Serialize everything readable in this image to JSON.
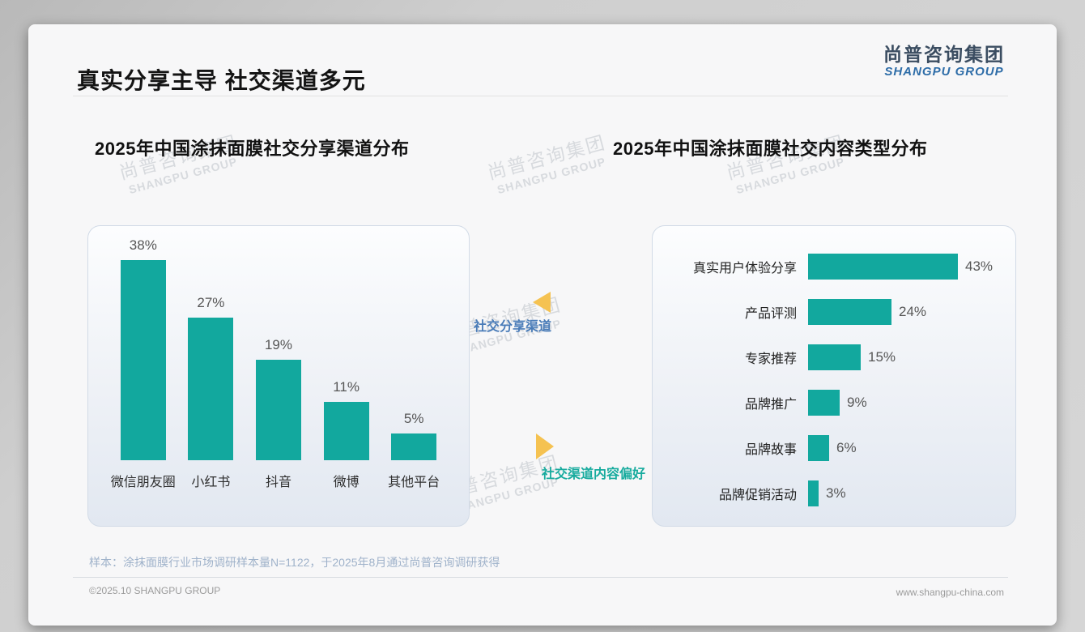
{
  "page": {
    "title": "真实分享主导 社交渠道多元",
    "logo": {
      "cn": "尚普咨询集团",
      "en": "SHANGPU GROUP"
    },
    "watermark": {
      "cn": "尚普咨询集团",
      "en": "SHANGPU GROUP"
    },
    "sample_note": "样本：涂抹面膜行业市场调研样本量N=1122，于2025年8月通过尚普咨询调研获得",
    "footer": {
      "left": "©2025.10 SHANGPU GROUP",
      "right": "www.shangpu-china.com"
    }
  },
  "annotations": [
    {
      "label": "社交分享渠道",
      "direction": "left",
      "color": "#4a7cb8"
    },
    {
      "label": "社交渠道内容偏好",
      "direction": "right",
      "color": "#17ab9e"
    }
  ],
  "colors": {
    "bar_teal": "#12a89e",
    "triangle_yellow": "#f5c251",
    "annotation_blue": "#4a7cb8",
    "annotation_teal": "#17ab9e",
    "logo_cn": "#3b4d61",
    "logo_en": "#2e6da8"
  },
  "chart_data": [
    {
      "type": "bar",
      "orientation": "vertical",
      "title": "2025年中国涂抹面膜社交分享渠道分布",
      "categories": [
        "微信朋友圈",
        "小红书",
        "抖音",
        "微博",
        "其他平台"
      ],
      "values": [
        38,
        27,
        19,
        11,
        5
      ],
      "unit": "%",
      "ylim": [
        0,
        40
      ],
      "grid": false,
      "data_labels": "above bars",
      "bar_color": "#12a89e"
    },
    {
      "type": "bar",
      "orientation": "horizontal",
      "title": "2025年中国涂抹面膜社交内容类型分布",
      "categories": [
        "真实用户体验分享",
        "产品评测",
        "专家推荐",
        "品牌推广",
        "品牌故事",
        "品牌促销活动"
      ],
      "values": [
        43,
        24,
        15,
        9,
        6,
        3
      ],
      "unit": "%",
      "xlim": [
        0,
        45
      ],
      "grid": false,
      "data_labels": "right of bars",
      "bar_color": "#12a89e"
    }
  ]
}
